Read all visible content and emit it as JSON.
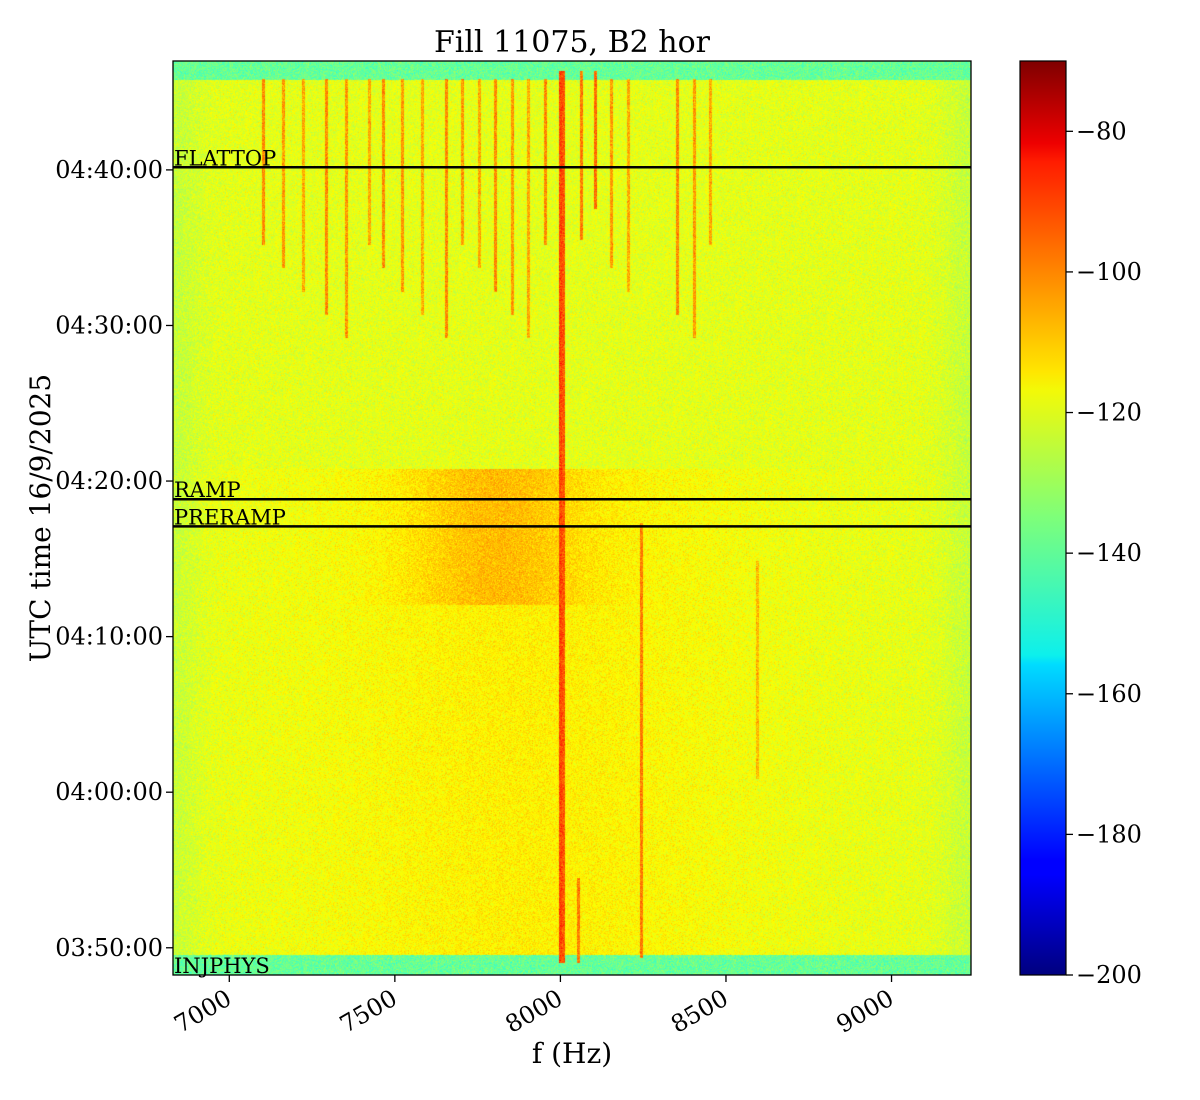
{
  "chart_data": {
    "type": "heatmap",
    "title": "Fill 11075, B2 hor",
    "xlabel": "f (Hz)",
    "ylabel": "UTC time 16/9/2025",
    "x_ticks": [
      {
        "value": 7000,
        "label": "7000"
      },
      {
        "value": 7500,
        "label": "7500"
      },
      {
        "value": 8000,
        "label": "8000"
      },
      {
        "value": 8500,
        "label": "8500"
      },
      {
        "value": 9000,
        "label": "9000"
      }
    ],
    "xlim": [
      6830,
      9240
    ],
    "y_ticks": [
      {
        "value": 1910,
        "label": "03:50:00"
      },
      {
        "value": 2510,
        "label": "04:00:00"
      },
      {
        "value": 3110,
        "label": "04:10:00"
      },
      {
        "value": 3710,
        "label": "04:20:00"
      },
      {
        "value": 4310,
        "label": "04:30:00"
      },
      {
        "value": 4910,
        "label": "04:40:00"
      }
    ],
    "ylim_seconds_past_0320": [
      1805,
      5330
    ],
    "colorbar": {
      "colormap": "jet",
      "range": [
        -200,
        -70
      ],
      "ticks": [
        {
          "value": -80,
          "label": "−80"
        },
        {
          "value": -100,
          "label": "−100"
        },
        {
          "value": -120,
          "label": "−120"
        },
        {
          "value": -140,
          "label": "−140"
        },
        {
          "value": -160,
          "label": "−160"
        },
        {
          "value": -180,
          "label": "−180"
        },
        {
          "value": -200,
          "label": "−200"
        }
      ]
    },
    "markers": [
      {
        "label": "FLATTOP",
        "time": 4920
      },
      {
        "label": "RAMP",
        "time": 3640
      },
      {
        "label": "PRERAMP",
        "time": 3535
      },
      {
        "label": "INJPHYS",
        "time": 1805
      }
    ],
    "background_level": -122,
    "edge_band_level": -138,
    "lines": [
      {
        "f": 7995,
        "t0": 1850,
        "t1": 5290,
        "level": -95
      },
      {
        "f": 8005,
        "t0": 1850,
        "t1": 5290,
        "level": -97
      },
      {
        "f": 8240,
        "t0": 1870,
        "t1": 3550,
        "level": -102
      },
      {
        "f": 8050,
        "t0": 1850,
        "t1": 2180,
        "level": -102
      },
      {
        "f": 8060,
        "t0": 4640,
        "t1": 5290,
        "level": -102
      },
      {
        "f": 8100,
        "t0": 4760,
        "t1": 5290,
        "level": -100
      },
      {
        "f": 8590,
        "t0": 2560,
        "t1": 3400,
        "level": -110
      }
    ],
    "comb_lines_top": [
      7100,
      7160,
      7220,
      7290,
      7350,
      7420,
      7460,
      7520,
      7580,
      7650,
      7700,
      7750,
      7800,
      7850,
      7900,
      7950,
      8150,
      8200,
      8350,
      8400,
      8450
    ]
  }
}
